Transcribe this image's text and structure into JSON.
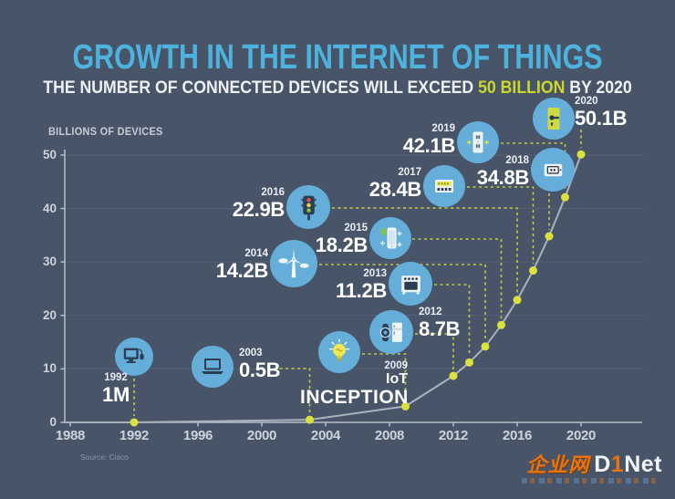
{
  "header": {
    "title": "GROWTH IN THE INTERNET OF THINGS",
    "subtitle_pre": "THE NUMBER OF CONNECTED DEVICES WILL EXCEED ",
    "subtitle_highlight": "50 BILLION",
    "subtitle_post": " BY 2020"
  },
  "chart_data": {
    "type": "line",
    "title": "GROWTH IN THE INTERNET OF THINGS",
    "subtitle": "THE NUMBER OF CONNECTED DEVICES WILL EXCEED 50 BILLION BY 2020",
    "ylabel": "BILLIONS OF DEVICES",
    "xlabel": "",
    "x_ticks": [
      1988,
      1992,
      1996,
      2000,
      2004,
      2008,
      2012,
      2016,
      2020
    ],
    "y_ticks": [
      0,
      10,
      20,
      30,
      40,
      50
    ],
    "xlim": [
      1988,
      2021
    ],
    "ylim": [
      0,
      50
    ],
    "grid": "faint horizontal lines at each y tick",
    "legend": "none",
    "line_color": "#a9b3bd",
    "marker_color": "#dbe13c",
    "milestones": [
      {
        "year": "1992",
        "value": 0.001,
        "value_label": "1M",
        "icon": "desktop-computer"
      },
      {
        "year": "2003",
        "value": 0.5,
        "value_label": "0.5B",
        "icon": "laptop"
      },
      {
        "year": "2009",
        "curve_value_est": 3,
        "value_label": "IoT INCEPTION",
        "label_line1": "IoT",
        "label_line2": "INCEPTION",
        "icon": "lightbulb"
      },
      {
        "year": "2012",
        "value": 8.7,
        "value_label": "8.7B",
        "icon": "smartwatch-refrigerator"
      },
      {
        "year": "2013",
        "value": 11.2,
        "value_label": "11.2B",
        "icon": "oven"
      },
      {
        "year": "2014",
        "value": 14.2,
        "value_label": "14.2B",
        "icon": "wind-turbine"
      },
      {
        "year": "2015",
        "value": 18.2,
        "value_label": "18.2B",
        "icon": "smartphone"
      },
      {
        "year": "2016",
        "value": 22.9,
        "value_label": "22.9B",
        "icon": "traffic-light"
      },
      {
        "year": "2017",
        "value": 28.4,
        "value_label": "28.4B",
        "icon": "smart-meter-panel"
      },
      {
        "year": "2018",
        "value": 34.8,
        "value_label": "34.8B",
        "icon": "thermostat"
      },
      {
        "year": "2019",
        "value": 42.1,
        "value_label": "42.1B",
        "icon": "power-outlet"
      },
      {
        "year": "2020",
        "value": 50.1,
        "value_label": "50.1B",
        "icon": "smart-door-lock"
      }
    ]
  },
  "footer": {
    "source": "Source: Cisco"
  },
  "watermark": {
    "cn": "企业网",
    "d": "D",
    "one": "1",
    "net": "Net"
  }
}
